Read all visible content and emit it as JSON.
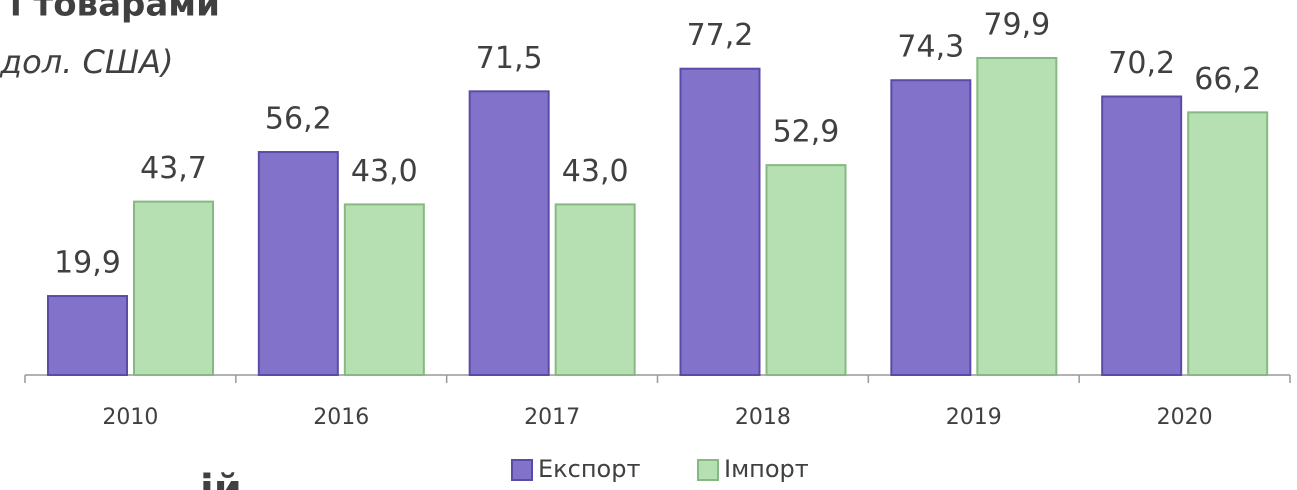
{
  "chart_data": {
    "type": "bar",
    "title": "і товарами",
    "subtitle": "дол. США)",
    "footer": "ій",
    "categories": [
      "2010",
      "2016",
      "2017",
      "2018",
      "2019",
      "2020"
    ],
    "series": [
      {
        "name": "Експорт",
        "color": "#8272c9",
        "values": [
          19.9,
          56.2,
          71.5,
          77.2,
          74.3,
          70.2
        ],
        "value_labels": [
          "19,9",
          "56,2",
          "71,5",
          "77,2",
          "74,3",
          "70,2"
        ]
      },
      {
        "name": "Імпорт",
        "color": "#b6e0b1",
        "values": [
          43.7,
          43.0,
          43.0,
          52.9,
          79.9,
          66.2
        ],
        "value_labels": [
          "43,7",
          "43,0",
          "43,0",
          "52,9",
          "79,9",
          "66,2"
        ]
      }
    ],
    "legend": "bottom"
  }
}
